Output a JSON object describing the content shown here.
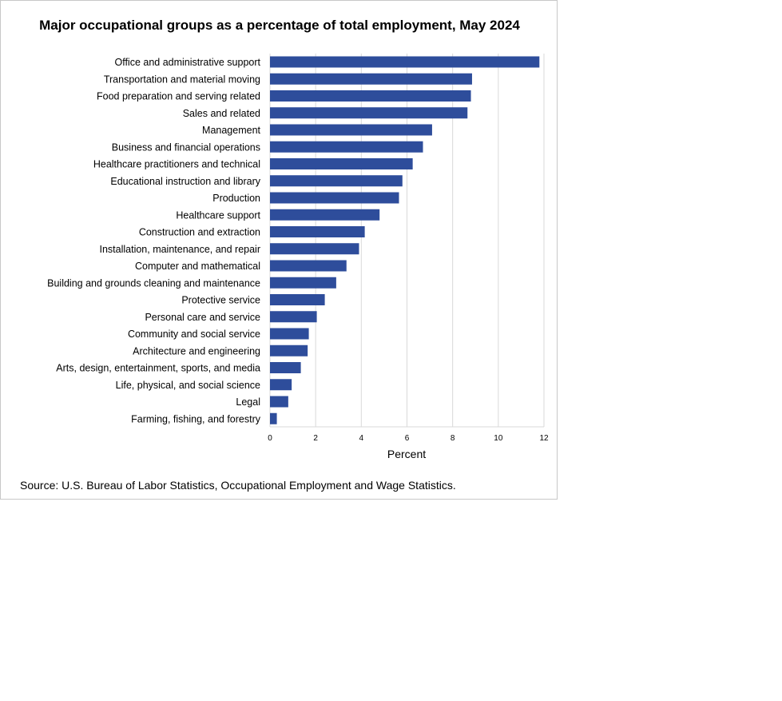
{
  "chart_data": {
    "type": "bar",
    "orientation": "horizontal",
    "title": "Major occupational groups as a percentage of total employment,  May 2024",
    "xlabel": "Percent",
    "ylabel": "",
    "xlim": [
      0,
      12
    ],
    "xticks": [
      "0",
      "2",
      "4",
      "6",
      "8",
      "10",
      "12"
    ],
    "grid": true,
    "bar_color": "#2E4D9B",
    "grid_color": "#D9D9D9",
    "categories": [
      "Office and administrative support",
      "Transportation and material moving",
      "Food preparation and serving related",
      "Sales and related",
      "Management",
      "Business and financial operations",
      "Healthcare practitioners and technical",
      "Educational instruction and library",
      "Production",
      "Healthcare support",
      "Construction and extraction",
      "Installation, maintenance, and repair",
      "Computer and mathematical",
      "Building and grounds cleaning and maintenance",
      "Protective service",
      "Personal care and service",
      "Community and social service",
      "Architecture and engineering",
      "Arts, design, entertainment, sports, and media",
      "Life, physical, and social science",
      "Legal",
      "Farming, fishing, and forestry"
    ],
    "values": [
      11.8,
      8.85,
      8.8,
      8.65,
      7.1,
      6.7,
      6.25,
      5.8,
      5.65,
      4.8,
      4.15,
      3.9,
      3.35,
      2.9,
      2.4,
      2.05,
      1.7,
      1.65,
      1.35,
      0.95,
      0.8,
      0.3
    ]
  },
  "source": "Source: U.S. Bureau of Labor Statistics, Occupational Employment and Wage Statistics."
}
